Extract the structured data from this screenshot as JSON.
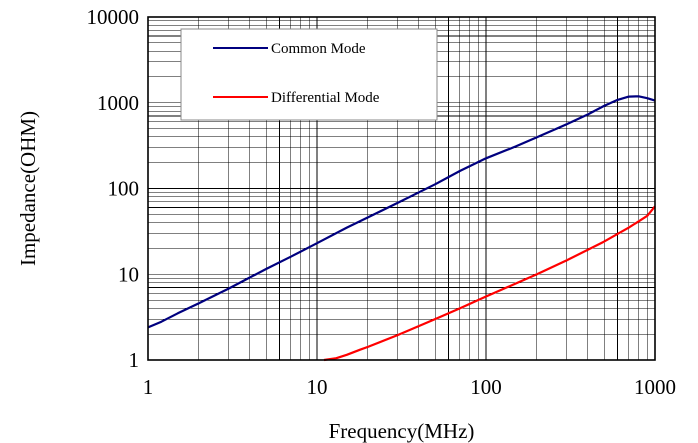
{
  "chart_data": {
    "type": "line",
    "x_scale": "log",
    "y_scale": "log",
    "xlim": [
      1,
      1000
    ],
    "ylim": [
      1,
      10000
    ],
    "xlabel": "Frequency(MHz)",
    "ylabel": "Impedance(OHM)",
    "x_ticks": [
      "1",
      "10",
      "100",
      "1000"
    ],
    "y_ticks": [
      "1",
      "10",
      "100",
      "1000",
      "10000"
    ],
    "grid": true,
    "legend_position": "top-left",
    "series": [
      {
        "name": "Common Mode",
        "color": "#00007f",
        "points": [
          [
            1,
            2.4
          ],
          [
            1.2,
            2.8
          ],
          [
            1.5,
            3.5
          ],
          [
            2,
            4.6
          ],
          [
            3,
            6.8
          ],
          [
            5,
            11.5
          ],
          [
            7,
            16
          ],
          [
            10,
            23
          ],
          [
            15,
            35
          ],
          [
            20,
            46
          ],
          [
            30,
            68
          ],
          [
            50,
            112
          ],
          [
            70,
            160
          ],
          [
            100,
            225
          ],
          [
            150,
            310
          ],
          [
            200,
            395
          ],
          [
            300,
            560
          ],
          [
            400,
            730
          ],
          [
            500,
            920
          ],
          [
            600,
            1080
          ],
          [
            700,
            1180
          ],
          [
            800,
            1190
          ],
          [
            900,
            1130
          ],
          [
            1000,
            1060
          ]
        ]
      },
      {
        "name": "Differential Mode",
        "color": "#ff0000",
        "points": [
          [
            11,
            1.0
          ],
          [
            13,
            1.05
          ],
          [
            15,
            1.15
          ],
          [
            18,
            1.32
          ],
          [
            20,
            1.42
          ],
          [
            30,
            1.95
          ],
          [
            50,
            3.0
          ],
          [
            70,
            4.0
          ],
          [
            100,
            5.5
          ],
          [
            150,
            7.8
          ],
          [
            200,
            10
          ],
          [
            300,
            14.5
          ],
          [
            500,
            24
          ],
          [
            700,
            35
          ],
          [
            900,
            48
          ],
          [
            1000,
            62
          ]
        ]
      }
    ]
  }
}
